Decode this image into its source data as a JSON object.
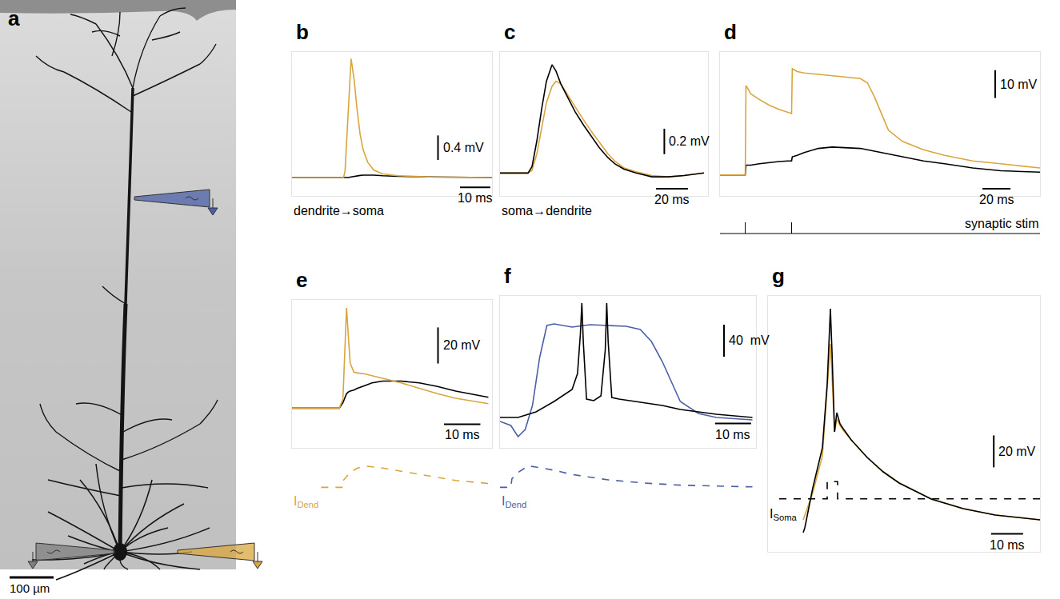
{
  "panel_a": {
    "letter": "a",
    "scale_bar": {
      "value": 100,
      "label": "100 µm"
    }
  },
  "chart_data": [
    {
      "letter": "b",
      "type": "line",
      "x": [
        0,
        10,
        17,
        17.5,
        18.5,
        19.5,
        20.5,
        21.5,
        22.5,
        23.5,
        25,
        27,
        30,
        35,
        45,
        66
      ],
      "series": [
        {
          "color": "#000000",
          "values": [
            0,
            0,
            0,
            0,
            0,
            0.01,
            0.02,
            0.03,
            0.035,
            0.04,
            0.04,
            0.04,
            0.03,
            0.02,
            0.01,
            0
          ]
        },
        {
          "color": "#daa53e",
          "values": [
            0,
            0,
            0,
            0.1,
            1.0,
            1.94,
            1.6,
            1.1,
            0.7,
            0.45,
            0.25,
            0.12,
            0.06,
            0.03,
            0.01,
            0
          ]
        }
      ],
      "xlim": [
        0,
        66
      ],
      "ylim": [
        -0.3,
        2.05
      ],
      "tick_labels": false,
      "scale_bars": {
        "x": {
          "value": 10,
          "label": "10 ms"
        },
        "y": {
          "value": 0.4,
          "label": "0.4 mV"
        }
      },
      "caption": "dendrite→soma"
    },
    {
      "letter": "c",
      "type": "line",
      "x": [
        0,
        10,
        17.5,
        20,
        23,
        26,
        29,
        32.5,
        35,
        38,
        42,
        47,
        52,
        57.5,
        62,
        67.5,
        72,
        77.5,
        85,
        95,
        105,
        115,
        127.5
      ],
      "series": [
        {
          "color": "#daa53e",
          "values": [
            0,
            0,
            0,
            0.02,
            0.15,
            0.35,
            0.55,
            0.68,
            0.72,
            0.7,
            0.62,
            0.52,
            0.42,
            0.32,
            0.24,
            0.15,
            0.09,
            0.04,
            0.01,
            -0.02,
            -0.03,
            -0.02,
            0
          ]
        },
        {
          "color": "#000000",
          "values": [
            0,
            0,
            0,
            0.05,
            0.25,
            0.5,
            0.72,
            0.85,
            0.8,
            0.7,
            0.6,
            0.48,
            0.38,
            0.28,
            0.2,
            0.12,
            0.07,
            0.03,
            0,
            -0.03,
            -0.03,
            -0.02,
            0
          ]
        }
      ],
      "xlim": [
        0,
        130
      ],
      "ylim": [
        -0.18,
        0.95
      ],
      "tick_labels": false,
      "scale_bars": {
        "x": {
          "value": 20,
          "label": "20 ms"
        },
        "y": {
          "value": 0.2,
          "label": "0.2 mV"
        }
      },
      "caption": "soma→dendrite"
    },
    {
      "letter": "d",
      "type": "line",
      "x": [
        0,
        18,
        18.5,
        22,
        28,
        35,
        42,
        48.5,
        51,
        51.5,
        55,
        60,
        70,
        80,
        90,
        100,
        105,
        110,
        115,
        120,
        130,
        145,
        160,
        180,
        200,
        228
      ],
      "series": [
        {
          "color": "#000000",
          "values": [
            0,
            0,
            3.5,
            3.5,
            4,
            4.5,
            4.8,
            5,
            5,
            6.5,
            7,
            8,
            9.5,
            10,
            9.8,
            9.5,
            9,
            8.5,
            8,
            7.5,
            6.5,
            5,
            4,
            2.5,
            1.5,
            1
          ]
        },
        {
          "color": "#daa53e",
          "values": [
            0,
            0,
            32,
            29,
            27,
            25,
            23.5,
            22.5,
            22,
            38,
            37,
            36.5,
            36,
            35.5,
            35,
            34.5,
            33,
            28,
            22,
            16,
            12,
            9,
            7,
            5,
            4,
            2.5
          ]
        }
      ],
      "xlim": [
        0,
        228
      ],
      "ylim": [
        -7.5,
        44
      ],
      "tick_labels": false,
      "scale_bars": {
        "x": {
          "value": 20,
          "label": "20 ms"
        },
        "y": {
          "value": 10,
          "label": "10 mV"
        }
      },
      "stimulus": {
        "label": "synaptic stim",
        "times": [
          18,
          51
        ]
      }
    },
    {
      "letter": "e",
      "type": "line",
      "x": [
        0,
        13,
        14,
        14.5,
        15,
        15.5,
        16,
        17,
        18,
        20,
        22,
        25,
        30,
        35,
        40,
        45,
        54
      ],
      "series": [
        {
          "color": "#000000",
          "values": [
            0,
            0,
            3,
            6,
            8,
            9,
            9.5,
            10,
            11,
            12.5,
            14,
            15,
            15,
            14,
            12,
            9.5,
            6
          ]
        },
        {
          "color": "#daa53e",
          "values": [
            0,
            0,
            5,
            35,
            55.6,
            40,
            25,
            20,
            19.5,
            19,
            18,
            16.5,
            14,
            11,
            8,
            5.5,
            2.5
          ]
        }
      ],
      "xlim": [
        0,
        55
      ],
      "ylim": [
        -22,
        60
      ],
      "tick_labels": false,
      "scale_bars": {
        "x": {
          "value": 10,
          "label": "10 ms"
        },
        "y": {
          "value": 20,
          "label": "20 mV"
        }
      },
      "current": {
        "label": "I",
        "label_sub": "Dend",
        "color": "#daa53e",
        "line_style": "dash",
        "x": [
          8,
          14,
          14,
          15,
          16,
          18,
          20,
          25,
          30,
          35,
          40,
          45,
          54
        ],
        "values": [
          0,
          0,
          0.3,
          0.5,
          0.7,
          0.9,
          1,
          0.9,
          0.75,
          0.6,
          0.45,
          0.32,
          0.18
        ],
        "ylim": [
          -0.1,
          1.1
        ]
      }
    },
    {
      "letter": "f",
      "type": "line",
      "series": [
        {
          "color": "#4b5fa6",
          "x": [
            0,
            3,
            5,
            7,
            9,
            11,
            13,
            15,
            20,
            25,
            30,
            35,
            38.9,
            42,
            45,
            48,
            50,
            55,
            60,
            70
          ],
          "values": [
            0,
            -5,
            -19,
            -10,
            20,
            80,
            120,
            122,
            118,
            121,
            120,
            119,
            115,
            100,
            75,
            45,
            25,
            10,
            5,
            2
          ]
        },
        {
          "color": "#000000",
          "x": [
            0,
            5,
            10,
            15,
            20,
            21.5,
            22.3,
            22.7,
            23.1,
            24,
            26,
            28,
            29.2,
            29.6,
            30,
            31,
            33,
            36,
            40,
            45,
            50,
            60,
            70
          ],
          "values": [
            5,
            5,
            12,
            25,
            40,
            60,
            110,
            148,
            100,
            28,
            26,
            32,
            90,
            148,
            100,
            30,
            28,
            26,
            24,
            20,
            15,
            9,
            5
          ]
        }
      ],
      "xlim": [
        0,
        71
      ],
      "ylim": [
        -33,
        157
      ],
      "tick_labels": false,
      "scale_bars": {
        "x": {
          "value": 10,
          "label": "10 ms"
        },
        "y": {
          "value": 40,
          "label": "40  mV"
        }
      },
      "current": {
        "label": "I",
        "label_sub": "Dend",
        "color": "#4b5fa6",
        "line_style": "dash",
        "x": [
          0,
          3,
          3.3,
          5,
          7.8,
          10,
          15,
          20,
          30,
          40,
          50,
          60,
          70
        ],
        "values": [
          0,
          0,
          0.4,
          0.7,
          1,
          0.95,
          0.8,
          0.6,
          0.35,
          0.2,
          0.1,
          0.05,
          0.02
        ],
        "ylim": [
          -0.1,
          1.1
        ]
      }
    },
    {
      "letter": "g",
      "type": "line",
      "x": [
        0,
        0.5,
        3,
        6,
        7.5,
        8.5,
        9,
        9.8,
        10.5,
        11.5,
        12.5,
        15,
        20,
        25,
        30,
        40,
        50,
        60,
        74
      ],
      "series": [
        {
          "color": "#daa53e",
          "values": [
            5,
            8,
            22,
            45,
            85,
            115,
            95,
            60,
            68,
            64,
            61,
            55,
            44,
            35,
            28,
            18,
            12,
            8,
            5
          ]
        },
        {
          "color": "#000000",
          "values": [
            -3,
            0,
            25,
            50,
            90,
            137,
            110,
            60,
            72,
            65,
            62,
            55,
            44,
            35,
            28,
            18,
            12,
            8,
            5
          ]
        }
      ],
      "xlim": [
        -11,
        74
      ],
      "ylim": [
        -15,
        145
      ],
      "tick_labels": false,
      "scale_bars": {
        "x": {
          "value": 10,
          "label": "10 ms"
        },
        "y": {
          "value": 20,
          "label": "20 mV"
        }
      },
      "current": {
        "label": "I",
        "label_sub": "Soma",
        "color": "#000000",
        "line_style": "dash",
        "x": [
          -7.5,
          7.5,
          7.5,
          10.75,
          10.75,
          74
        ],
        "values": [
          0,
          0,
          1,
          1,
          0,
          0
        ],
        "ylim": [
          -0.2,
          1.2
        ]
      }
    }
  ]
}
